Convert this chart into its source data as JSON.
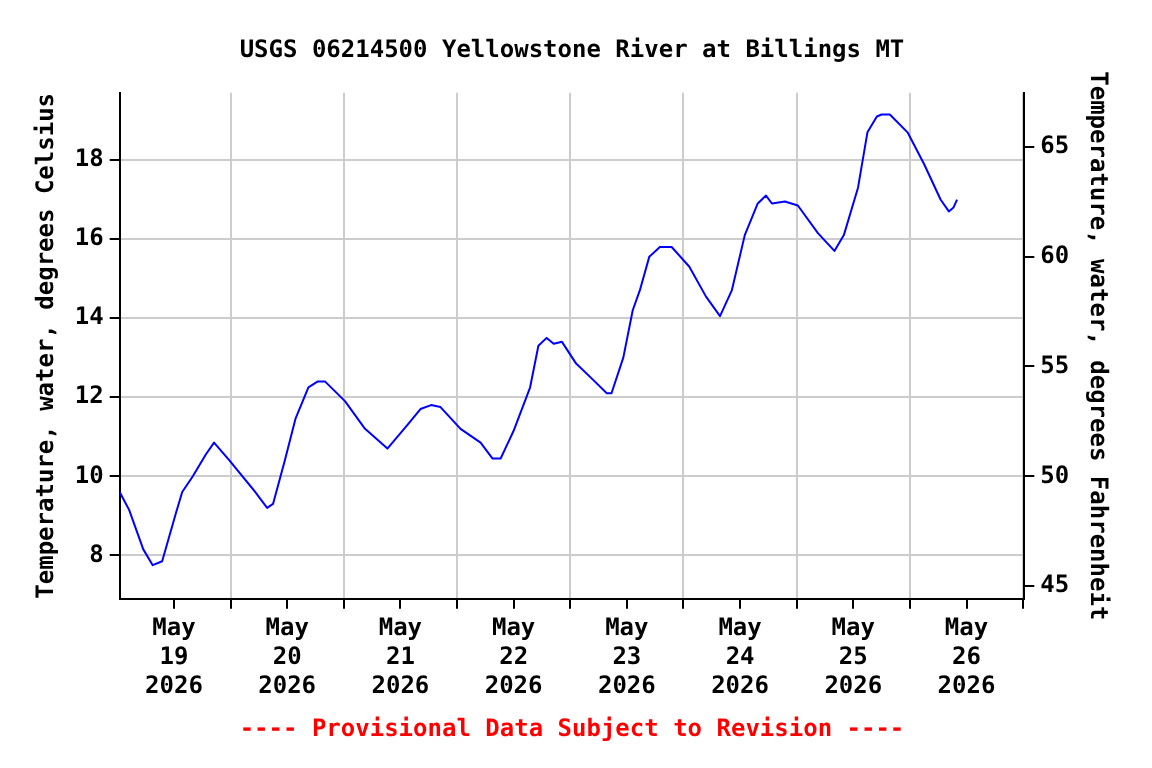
{
  "chart_data": {
    "type": "line",
    "title": "USGS 06214500 Yellowstone River at Billings MT",
    "ylabel": "Temperature, water, degrees Celsius",
    "y2label": "Temperature, water, degrees Fahrenheit",
    "annotations": [
      "---- Provisional Data Subject to Revision ----"
    ],
    "x": [
      "2026-05-18T12:30",
      "2026-05-18T14:30",
      "2026-05-18T17:30",
      "2026-05-18T19:30",
      "2026-05-18T21:30",
      "2026-05-19T00:30",
      "2026-05-19T01:45",
      "2026-05-19T04:00",
      "2026-05-19T06:45",
      "2026-05-19T08:30",
      "2026-05-19T11:45",
      "2026-05-19T17:15",
      "2026-05-19T19:45",
      "2026-05-19T21:00",
      "2026-05-19T23:30",
      "2026-05-20T01:45",
      "2026-05-20T04:30",
      "2026-05-20T06:30",
      "2026-05-20T08:00",
      "2026-05-20T12:15",
      "2026-05-20T16:30",
      "2026-05-20T21:15",
      "2026-05-21T01:30",
      "2026-05-21T04:15",
      "2026-05-21T06:30",
      "2026-05-21T08:30",
      "2026-05-21T12:45",
      "2026-05-21T17:00",
      "2026-05-21T19:30",
      "2026-05-21T21:15",
      "2026-05-22T00:00",
      "2026-05-22T03:30",
      "2026-05-22T05:15",
      "2026-05-22T07:00",
      "2026-05-22T08:30",
      "2026-05-22T10:15",
      "2026-05-22T13:15",
      "2026-05-22T16:45",
      "2026-05-22T19:45",
      "2026-05-22T20:45",
      "2026-05-22T23:15",
      "2026-05-23T01:15",
      "2026-05-23T02:45",
      "2026-05-23T04:45",
      "2026-05-23T07:00",
      "2026-05-23T09:30",
      "2026-05-23T13:15",
      "2026-05-23T16:45",
      "2026-05-23T19:45",
      "2026-05-23T22:15",
      "2026-05-24T01:00",
      "2026-05-24T03:45",
      "2026-05-24T05:30",
      "2026-05-24T06:45",
      "2026-05-24T09:30",
      "2026-05-24T12:15",
      "2026-05-24T16:30",
      "2026-05-24T20:00",
      "2026-05-24T22:00",
      "2026-05-25T01:00",
      "2026-05-25T03:00",
      "2026-05-25T05:00",
      "2026-05-25T06:00",
      "2026-05-25T07:45",
      "2026-05-25T11:30",
      "2026-05-25T15:00",
      "2026-05-25T18:30",
      "2026-05-25T20:15",
      "2026-05-25T21:15",
      "2026-05-25T22:00"
    ],
    "series": [
      {
        "color": "#0000ff",
        "values": [
          9.6,
          9.15,
          8.15,
          7.75,
          7.85,
          9.1,
          9.6,
          10.0,
          10.55,
          10.85,
          10.4,
          9.6,
          9.2,
          9.3,
          10.4,
          11.45,
          12.25,
          12.4,
          12.4,
          11.9,
          11.2,
          10.7,
          11.3,
          11.7,
          11.8,
          11.75,
          11.2,
          10.85,
          10.45,
          10.45,
          11.15,
          12.25,
          13.3,
          13.5,
          13.35,
          13.4,
          12.85,
          12.45,
          12.1,
          12.1,
          13.0,
          14.2,
          14.7,
          15.55,
          15.8,
          15.8,
          15.3,
          14.55,
          14.05,
          14.7,
          16.1,
          16.9,
          17.1,
          16.9,
          16.95,
          16.85,
          16.15,
          15.7,
          16.1,
          17.3,
          18.7,
          19.1,
          19.15,
          19.15,
          18.7,
          17.9,
          17.0,
          16.7,
          16.8,
          17.0
        ]
      }
    ],
    "xlim": [
      "2026-05-18T12:30",
      "2026-05-26T12:15"
    ],
    "xticks": [
      {
        "value": "2026-05-19T00:00",
        "label": "May 19 2026"
      },
      {
        "value": "2026-05-19T12:00",
        "label": null
      },
      {
        "value": "2026-05-20T00:00",
        "label": "May 20 2026"
      },
      {
        "value": "2026-05-20T12:00",
        "label": null
      },
      {
        "value": "2026-05-21T00:00",
        "label": "May 21 2026"
      },
      {
        "value": "2026-05-21T12:00",
        "label": null
      },
      {
        "value": "2026-05-22T00:00",
        "label": "May 22 2026"
      },
      {
        "value": "2026-05-22T12:00",
        "label": null
      },
      {
        "value": "2026-05-23T00:00",
        "label": "May 23 2026"
      },
      {
        "value": "2026-05-23T12:00",
        "label": null
      },
      {
        "value": "2026-05-24T00:00",
        "label": "May 24 2026"
      },
      {
        "value": "2026-05-24T12:00",
        "label": null
      },
      {
        "value": "2026-05-25T00:00",
        "label": "May 25 2026"
      },
      {
        "value": "2026-05-25T12:00",
        "label": null
      },
      {
        "value": "2026-05-26T00:00",
        "label": "May 26 2026"
      },
      {
        "value": "2026-05-26T12:00",
        "label": null
      }
    ],
    "ylim": [
      6.9,
      19.7
    ],
    "yticks": [
      8,
      10,
      12,
      14,
      16,
      18
    ],
    "y2lim": [
      44.42,
      67.46
    ],
    "y2ticks": [
      45,
      50,
      55,
      60,
      65
    ],
    "grid": true,
    "legend": false,
    "marker": "none",
    "line_style": "solid"
  }
}
